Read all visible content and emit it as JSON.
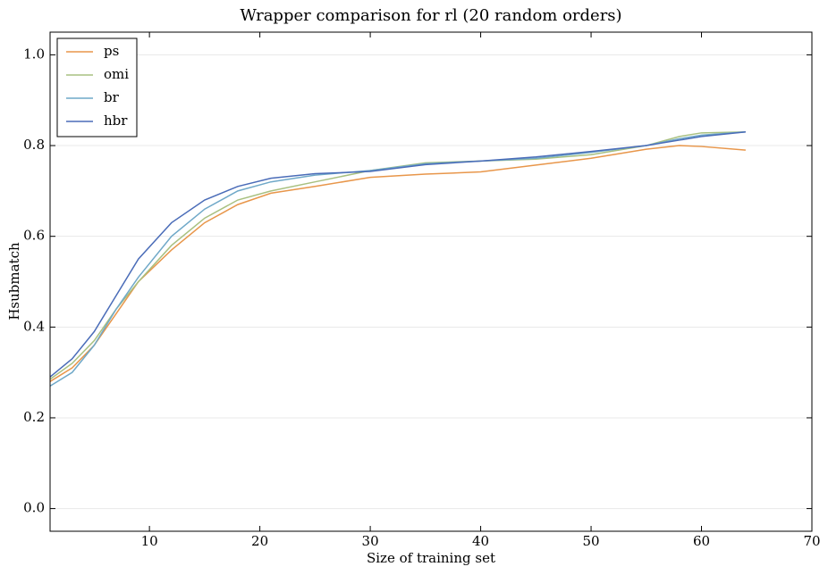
{
  "chart_data": {
    "type": "line",
    "title": "Wrapper comparison for rl (20 random orders)",
    "x_label": "Size of training set",
    "y_label": "Hsubmatch",
    "x": [
      1,
      3,
      5,
      7,
      9,
      12,
      15,
      18,
      21,
      25,
      30,
      35,
      40,
      45,
      50,
      55,
      58,
      60,
      64
    ],
    "series": [
      {
        "name": "ps",
        "color": "#e8964a",
        "values": [
          0.28,
          0.31,
          0.36,
          0.43,
          0.5,
          0.57,
          0.63,
          0.67,
          0.695,
          0.71,
          0.73,
          0.737,
          0.742,
          0.757,
          0.772,
          0.792,
          0.8,
          0.798,
          0.79
        ]
      },
      {
        "name": "omi",
        "color": "#a8c080",
        "values": [
          0.285,
          0.32,
          0.37,
          0.44,
          0.5,
          0.58,
          0.64,
          0.68,
          0.7,
          0.72,
          0.745,
          0.762,
          0.766,
          0.77,
          0.78,
          0.8,
          0.82,
          0.828,
          0.83
        ]
      },
      {
        "name": "br",
        "color": "#6fa8c8",
        "values": [
          0.27,
          0.3,
          0.36,
          0.44,
          0.51,
          0.6,
          0.66,
          0.7,
          0.72,
          0.735,
          0.745,
          0.76,
          0.766,
          0.772,
          0.785,
          0.8,
          0.815,
          0.823,
          0.83
        ]
      },
      {
        "name": "hbr",
        "color": "#4a6cb8",
        "values": [
          0.29,
          0.33,
          0.39,
          0.47,
          0.55,
          0.63,
          0.68,
          0.71,
          0.728,
          0.738,
          0.743,
          0.758,
          0.766,
          0.775,
          0.787,
          0.8,
          0.812,
          0.82,
          0.83
        ]
      }
    ],
    "xlim": [
      1,
      70
    ],
    "ylim": [
      -0.05,
      1.05
    ],
    "xticks": [
      10,
      20,
      30,
      40,
      50,
      60,
      70
    ],
    "yticks": [
      {
        "value": 0,
        "label": "0.0"
      },
      0.2,
      0.4,
      0.6,
      0.8,
      {
        "value": 1,
        "label": "1.0"
      }
    ],
    "grid": "y",
    "legend": "upper left"
  }
}
